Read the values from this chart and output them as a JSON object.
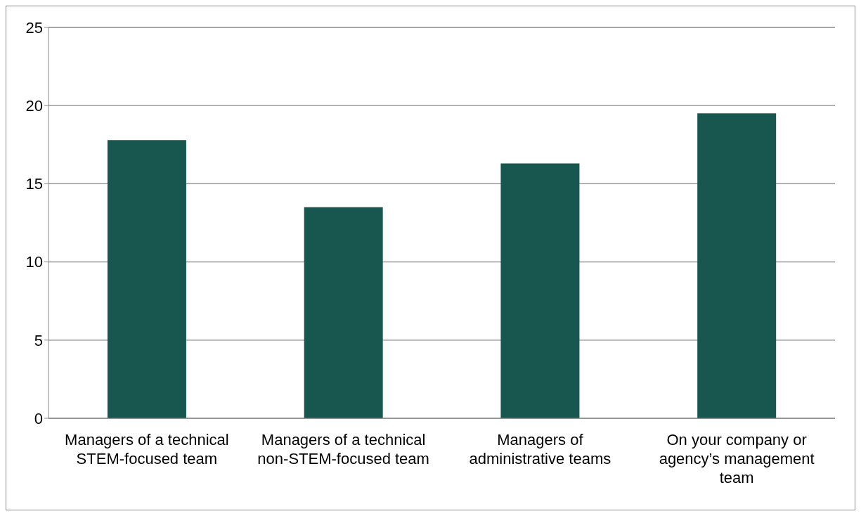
{
  "chart_data": {
    "type": "bar",
    "categories": [
      "Managers of a technical STEM-focused team",
      "Managers of a technical non-STEM-focused team",
      "Managers of administrative teams",
      "On your company or agency’s management team"
    ],
    "values": [
      17.8,
      13.5,
      16.3,
      19.5
    ],
    "color": "#17574f",
    "ylim": [
      0,
      25
    ],
    "yticks": [
      0,
      5,
      10,
      15,
      20,
      25
    ],
    "grid": "y"
  }
}
